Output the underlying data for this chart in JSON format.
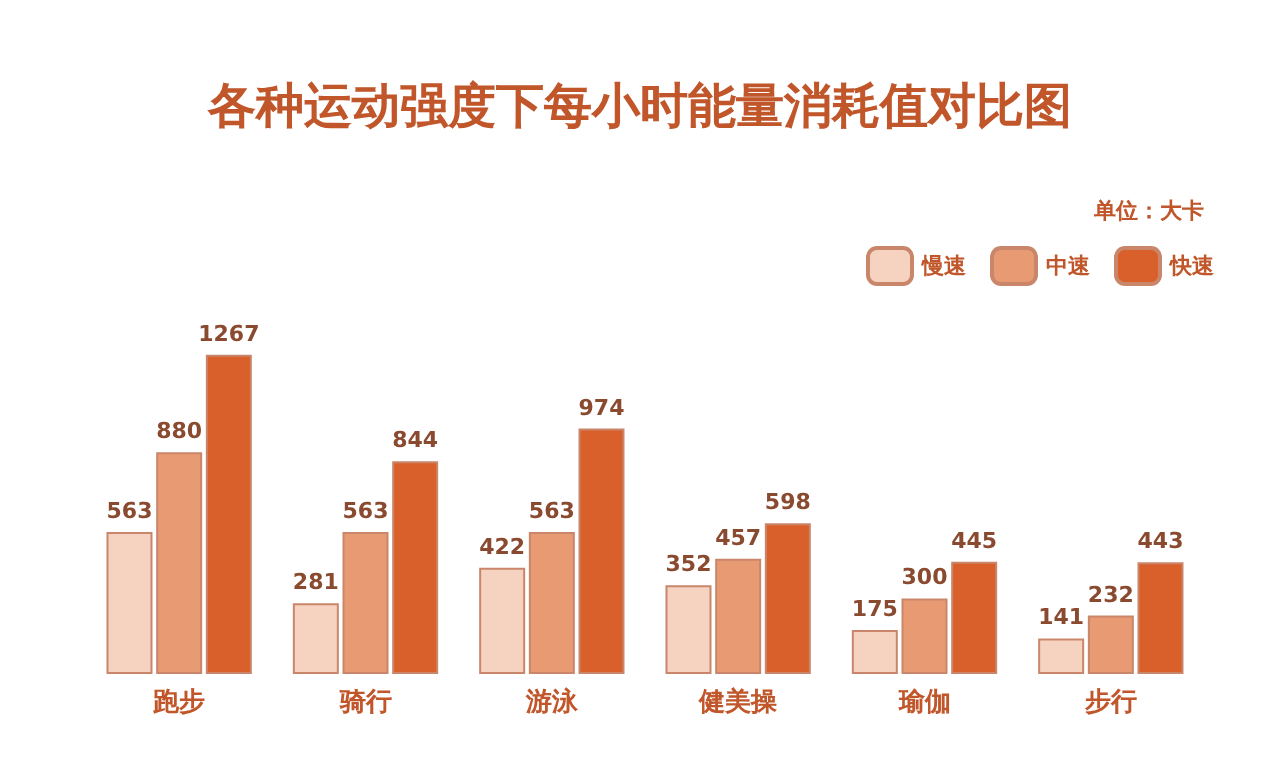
{
  "chart_data": {
    "type": "bar",
    "title": "各种运动强度下每小时能量消耗值对比图",
    "annotations": [
      "单位：大卡"
    ],
    "categories": [
      "跑步",
      "骑行",
      "游泳",
      "健美操",
      "瑜伽",
      "步行"
    ],
    "series": [
      {
        "name": "慢速",
        "color": "#f6d3c0",
        "values": [
          563,
          281,
          422,
          352,
          175,
          141
        ]
      },
      {
        "name": "中速",
        "color": "#e89a72",
        "values": [
          880,
          563,
          563,
          457,
          300,
          232
        ]
      },
      {
        "name": "快速",
        "color": "#d95f2b",
        "values": [
          1267,
          844,
          974,
          598,
          445,
          443
        ]
      }
    ],
    "data_labels": true,
    "legend": "top right"
  }
}
